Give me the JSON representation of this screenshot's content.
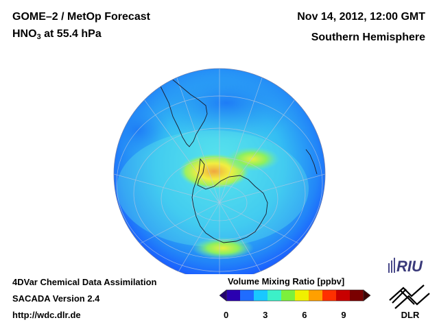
{
  "header": {
    "title_line1": "GOME–2 / MetOp Forecast",
    "species": "HNO",
    "species_sub": "3",
    "level": " at 55.4 hPa",
    "datetime": "Nov 14, 2012, 12:00 GMT",
    "region": "Southern Hemisphere"
  },
  "footer": {
    "assimilation": "4DVar Chemical Data Assimilation",
    "version": "SACADA Version 2.4",
    "url": "http://wdc.dlr.de"
  },
  "colorbar": {
    "title": "Volume Mixing Ratio [ppbv]",
    "min": 0,
    "max": 10.5,
    "ticks": [
      "0",
      "3",
      "6",
      "9"
    ],
    "tick_values": [
      0,
      3,
      6,
      9
    ],
    "colors": [
      "#2a00b0",
      "#1f6cff",
      "#19c8ff",
      "#3cf0c8",
      "#7cf03c",
      "#f0f000",
      "#ffa000",
      "#ff3000",
      "#c80000",
      "#7a0000"
    ],
    "under_color": "#23006e",
    "over_color": "#3d0000"
  },
  "logos": {
    "riu": "RIU",
    "dlr": "DLR"
  },
  "map_colors": {
    "ocean_edge": "#1a5cff",
    "field_mid": "#2db8f5",
    "field_light": "#5fe8ea",
    "high_yellow": "#f2ee40",
    "high_orange": "#f0a640"
  }
}
